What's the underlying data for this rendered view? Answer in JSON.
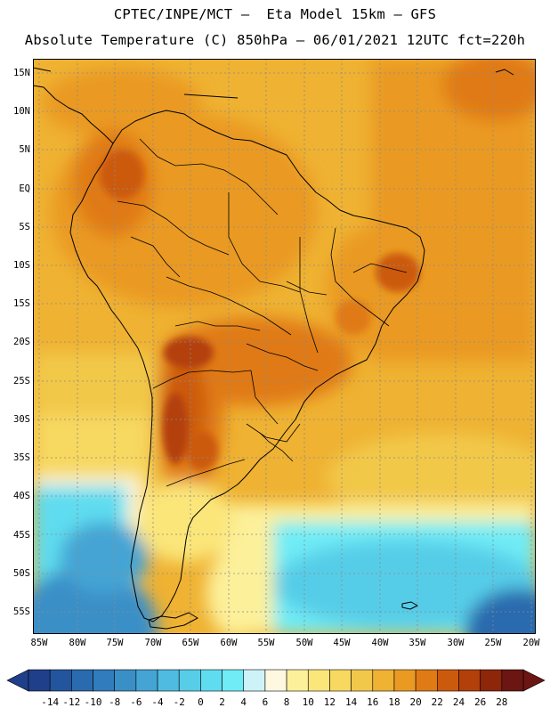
{
  "header": {
    "line1": "CPTEC/INPE/MCT –  Eta Model 15km – GFS",
    "line2": "Absolute Temperature (C) 850hPa – 06/01/2021 12UTC fct=220h"
  },
  "map": {
    "variable": "Absolute Temperature",
    "units": "C",
    "level": "850hPa",
    "lat_labels": [
      "15N",
      "10N",
      "5N",
      "EQ",
      "5S",
      "10S",
      "15S",
      "20S",
      "25S",
      "30S",
      "35S",
      "40S",
      "45S",
      "50S",
      "55S"
    ],
    "lon_labels": [
      "85W",
      "80W",
      "75W",
      "70W",
      "65W",
      "60W",
      "55W",
      "50W",
      "45W",
      "40W",
      "35W",
      "30W",
      "25W",
      "20W"
    ]
  },
  "legend": {
    "tick_labels": [
      "-14",
      "-12",
      "-10",
      "-8",
      "-6",
      "-4",
      "-2",
      "0",
      "2",
      "4",
      "6",
      "8",
      "10",
      "12",
      "14",
      "16",
      "18",
      "20",
      "22",
      "24",
      "26",
      "28"
    ],
    "colors": [
      "#1f3f8a",
      "#23559e",
      "#2a6aae",
      "#307cbc",
      "#3a8fc7",
      "#44a4d4",
      "#4fbbe0",
      "#57cde8",
      "#5fdcef",
      "#6fecf6",
      "#cdf3f8",
      "#fef8e0",
      "#fdf09a",
      "#fbe67a",
      "#f7d860",
      "#f2c84a",
      "#efb232",
      "#ea9a22",
      "#e07a14",
      "#cc5a0c",
      "#b3400a",
      "#8e260a",
      "#6b1612"
    ]
  }
}
